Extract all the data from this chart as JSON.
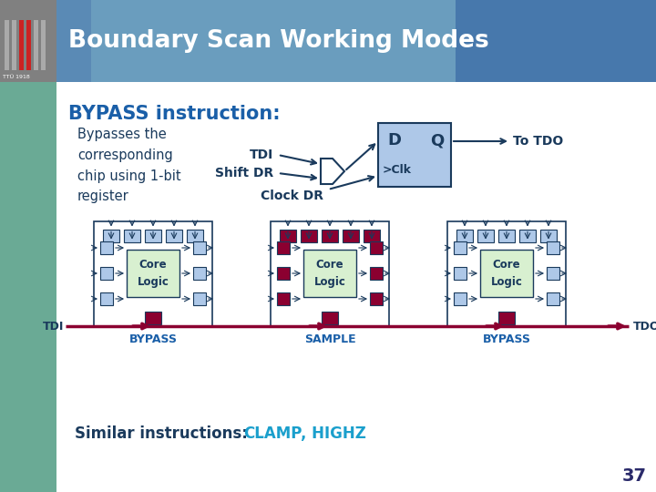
{
  "title": "Boundary Scan Working Modes",
  "bypass_title": "BYPASS instruction:",
  "bypass_desc": "Bypasses the\ncorresponding\nchip using 1-bit\nregister",
  "tdi_label": "TDI",
  "shift_dr_label": "Shift DR",
  "clock_dr_label": "Clock DR",
  "d_label": "D",
  "q_label": "Q",
  "clk_label": ">Clk",
  "to_tdo_label": "To TDO",
  "bypass_label1": "BYPASS",
  "sample_label": "SAMPLE",
  "bypass_label2": "BYPASS",
  "tdi_bottom": "TDI",
  "tdo_bottom": "TDO",
  "similar_prefix": "Similar instructions: ",
  "clamp_text": "CLAMP",
  "comma_highz": ", HIGHZ",
  "page_num": "37",
  "header_color": "#5a8ab5",
  "header_text_color": "#ffffff",
  "left_strip_color": "#6aaa95",
  "white_bg": "#ffffff",
  "bypass_title_color": "#1a5fa8",
  "body_text_color": "#1a3a5c",
  "ff_fill": "#aec8e8",
  "ff_border": "#1a3a5c",
  "core_fill": "#d8f0d0",
  "core_border": "#1a3a5c",
  "arrow_color": "#1a3a5c",
  "dark_red": "#8b0030",
  "label_blue": "#1a5fa8",
  "cyan_text": "#1a9fcc",
  "page_color": "#2a2a6a"
}
